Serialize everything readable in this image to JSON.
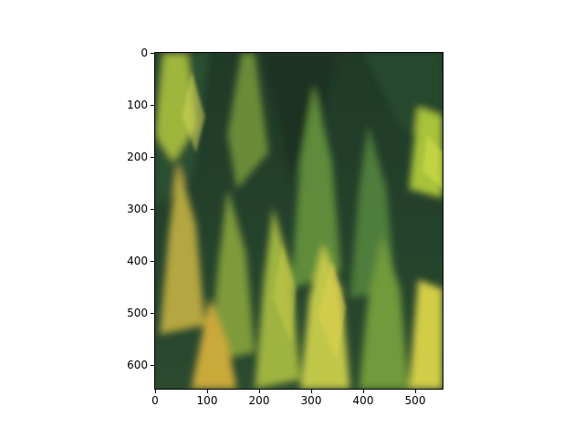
{
  "image": {
    "subject": "forest-canopy-photo",
    "colors": {
      "dark": "#1a3020",
      "mid": "#2f5a36",
      "light": "#5f8a3a",
      "highlight": "#b9cd3e"
    }
  },
  "axes": {
    "x_range": [
      0,
      555
    ],
    "y_range": [
      0,
      648
    ],
    "y_inverted": true,
    "x_ticks": [
      "0",
      "100",
      "200",
      "300",
      "400",
      "500"
    ],
    "y_ticks": [
      "0",
      "100",
      "200",
      "300",
      "400",
      "500",
      "600"
    ],
    "x_tick_values": [
      0,
      100,
      200,
      300,
      400,
      500
    ],
    "y_tick_values": [
      0,
      100,
      200,
      300,
      400,
      500,
      600
    ]
  }
}
